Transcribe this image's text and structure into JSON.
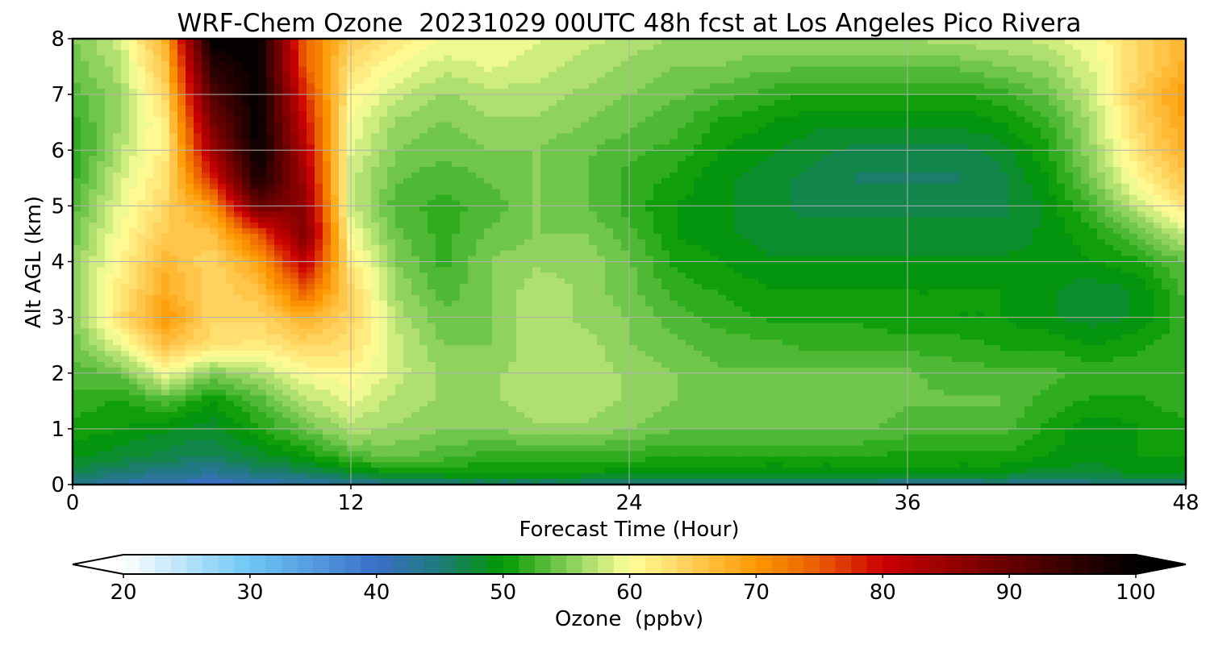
{
  "chart_data": {
    "type": "heatmap",
    "title": "WRF-Chem Ozone  20231029 00UTC 48h fcst at Los Angeles Pico Rivera",
    "xlabel": "Forecast Time (Hour)",
    "ylabel": "Alt AGL (km)",
    "xlim": [
      0,
      48
    ],
    "ylim": [
      0,
      8
    ],
    "x_ticks": [
      0,
      12,
      24,
      36,
      48
    ],
    "y_ticks": [
      0,
      1,
      2,
      3,
      4,
      5,
      6,
      7,
      8
    ],
    "grid": true,
    "colorbar": {
      "label": "Ozone  (ppbv)",
      "range": [
        20,
        100
      ],
      "ticks": [
        20,
        30,
        40,
        50,
        60,
        70,
        80,
        90,
        100
      ],
      "extend": "both",
      "orientation": "horizontal",
      "stops": [
        {
          "value": 20,
          "color": "#ffffff"
        },
        {
          "value": 30,
          "color": "#6ec6f5"
        },
        {
          "value": 40,
          "color": "#3a6fc8"
        },
        {
          "value": 45,
          "color": "#1f7a7a"
        },
        {
          "value": 50,
          "color": "#009900"
        },
        {
          "value": 55,
          "color": "#7fcc55"
        },
        {
          "value": 60,
          "color": "#ffff99"
        },
        {
          "value": 65,
          "color": "#ffcc55"
        },
        {
          "value": 70,
          "color": "#ff9900"
        },
        {
          "value": 75,
          "color": "#e85c00"
        },
        {
          "value": 80,
          "color": "#cc0000"
        },
        {
          "value": 90,
          "color": "#660000"
        },
        {
          "value": 100,
          "color": "#000000"
        }
      ]
    },
    "z": {
      "x_hours": [
        0,
        2,
        4,
        6,
        8,
        10,
        12,
        14,
        16,
        18,
        20,
        22,
        24,
        26,
        28,
        30,
        32,
        34,
        36,
        38,
        40,
        42,
        44,
        46,
        48
      ],
      "alt_km": [
        0,
        0.2,
        0.5,
        1,
        1.5,
        2,
        2.5,
        3,
        3.5,
        4,
        4.5,
        5,
        5.5,
        6,
        6.5,
        7,
        7.5,
        8
      ],
      "values_ppbv": [
        [
          44,
          42,
          41,
          40,
          41,
          42,
          43,
          44,
          45,
          45,
          45,
          45,
          44,
          44,
          44,
          44,
          44,
          44,
          43,
          43,
          44,
          43,
          44,
          44,
          45
        ],
        [
          47,
          45,
          44,
          43,
          45,
          46,
          48,
          50,
          50,
          50,
          50,
          50,
          49,
          49,
          49,
          49,
          49,
          49,
          49,
          49,
          49,
          48,
          48,
          49,
          49
        ],
        [
          49,
          48,
          47,
          46,
          48,
          50,
          53,
          54,
          53,
          52,
          52,
          52,
          52,
          51,
          51,
          51,
          51,
          51,
          51,
          51,
          51,
          50,
          49,
          50,
          50
        ],
        [
          51,
          50,
          49,
          48,
          51,
          54,
          57,
          56,
          55,
          55,
          56,
          56,
          55,
          54,
          54,
          54,
          54,
          54,
          53,
          53,
          53,
          51,
          49,
          50,
          51
        ],
        [
          52,
          51,
          53,
          50,
          53,
          57,
          59,
          57,
          56,
          56,
          57,
          57,
          56,
          55,
          55,
          55,
          55,
          55,
          54,
          54,
          54,
          52,
          51,
          51,
          52
        ],
        [
          53,
          54,
          60,
          55,
          57,
          60,
          61,
          58,
          56,
          56,
          57,
          57,
          56,
          55,
          54,
          54,
          54,
          54,
          54,
          53,
          53,
          53,
          52,
          52,
          52
        ],
        [
          54,
          59,
          66,
          63,
          62,
          64,
          63,
          58,
          55,
          55,
          57,
          57,
          55,
          54,
          53,
          53,
          52,
          52,
          52,
          52,
          51,
          51,
          50,
          51,
          52
        ],
        [
          55,
          63,
          70,
          64,
          64,
          68,
          64,
          57,
          54,
          55,
          57,
          56,
          55,
          53,
          52,
          51,
          51,
          51,
          50,
          50,
          50,
          49,
          48,
          49,
          52
        ],
        [
          55,
          62,
          68,
          64,
          66,
          75,
          64,
          56,
          53,
          55,
          57,
          56,
          54,
          52,
          51,
          50,
          50,
          50,
          50,
          50,
          50,
          49,
          48,
          49,
          53
        ],
        [
          55,
          61,
          67,
          64,
          69,
          82,
          62,
          55,
          52,
          55,
          56,
          56,
          54,
          51,
          50,
          49,
          49,
          49,
          49,
          49,
          49,
          49,
          50,
          51,
          54
        ],
        [
          54,
          60,
          65,
          66,
          75,
          88,
          60,
          54,
          52,
          54,
          55,
          55,
          53,
          50,
          49,
          48,
          48,
          48,
          48,
          48,
          48,
          49,
          51,
          54,
          58
        ],
        [
          53,
          59,
          64,
          70,
          90,
          86,
          58,
          53,
          52,
          53,
          55,
          54,
          52,
          50,
          49,
          48,
          47,
          47,
          47,
          47,
          47,
          49,
          53,
          58,
          63
        ],
        [
          52,
          58,
          63,
          78,
          98,
          84,
          58,
          54,
          53,
          54,
          55,
          54,
          52,
          51,
          49,
          48,
          47,
          46,
          46,
          46,
          47,
          50,
          55,
          61,
          66
        ],
        [
          51,
          57,
          62,
          84,
          100,
          82,
          59,
          55,
          54,
          55,
          55,
          54,
          53,
          52,
          50,
          49,
          48,
          47,
          47,
          47,
          48,
          51,
          56,
          63,
          68
        ],
        [
          52,
          56,
          62,
          88,
          100,
          80,
          60,
          56,
          55,
          56,
          56,
          55,
          54,
          53,
          51,
          50,
          49,
          49,
          49,
          49,
          50,
          52,
          57,
          64,
          69
        ],
        [
          53,
          56,
          64,
          92,
          100,
          78,
          61,
          58,
          56,
          57,
          57,
          56,
          55,
          54,
          53,
          52,
          51,
          51,
          51,
          51,
          52,
          54,
          58,
          65,
          70
        ],
        [
          54,
          57,
          66,
          96,
          100,
          75,
          63,
          60,
          58,
          59,
          58,
          57,
          56,
          55,
          55,
          54,
          54,
          54,
          54,
          54,
          55,
          56,
          59,
          64,
          68
        ],
        [
          55,
          58,
          68,
          100,
          100,
          74,
          65,
          62,
          60,
          60,
          59,
          58,
          57,
          56,
          56,
          56,
          56,
          56,
          56,
          57,
          57,
          58,
          60,
          64,
          67
        ]
      ]
    }
  }
}
